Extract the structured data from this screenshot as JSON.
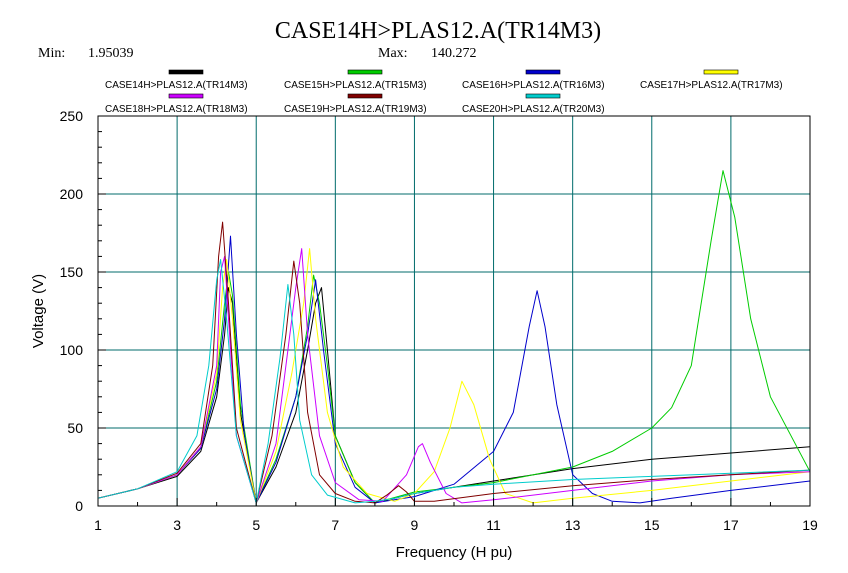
{
  "chart_data": {
    "type": "line",
    "title": "CASE14H>PLAS12.A(TR14M3)",
    "min_label": "Min:",
    "min_value": "1.95039",
    "max_label": "Max:",
    "max_value": "140.272",
    "xlabel": "Frequency (H pu)",
    "ylabel": "Voltage (V)",
    "xlim": [
      1,
      19
    ],
    "ylim": [
      0,
      250
    ],
    "x_ticks": [
      1,
      3,
      5,
      7,
      9,
      11,
      13,
      15,
      17,
      19
    ],
    "y_ticks": [
      0,
      50,
      100,
      150,
      200,
      250
    ],
    "grid": true,
    "legend_position": "top",
    "series": [
      {
        "name": "CASE14H>PLAS12.A(TR14M3)",
        "color": "#000000",
        "x": [
          1,
          2,
          3,
          3.6,
          4.0,
          4.2,
          4.3,
          4.4,
          4.6,
          5.0,
          5.5,
          6.0,
          6.3,
          6.5,
          6.65,
          6.8,
          7.0,
          7.5,
          8.0,
          9,
          11,
          13,
          15,
          17,
          19
        ],
        "y": [
          5,
          11,
          19,
          35,
          70,
          110,
          140,
          130,
          60,
          2,
          25,
          60,
          100,
          130,
          140,
          100,
          45,
          15,
          1.95,
          8,
          16,
          24,
          30,
          34,
          38
        ]
      },
      {
        "name": "CASE15H>PLAS12.A(TR15M3)",
        "color": "#00cc00",
        "x": [
          1,
          2,
          3,
          3.6,
          4.0,
          4.2,
          4.3,
          4.4,
          4.6,
          5.0,
          5.5,
          6.0,
          6.3,
          6.45,
          6.6,
          6.8,
          7.0,
          7.5,
          8.0,
          9,
          11,
          13,
          14,
          15,
          15.5,
          16,
          16.5,
          16.8,
          17.1,
          17.5,
          18,
          19
        ],
        "y": [
          5,
          11,
          20,
          37,
          80,
          130,
          150,
          135,
          65,
          2,
          30,
          70,
          115,
          148,
          130,
          90,
          45,
          15,
          2,
          9,
          15,
          25,
          35,
          50,
          63,
          90,
          170,
          215,
          185,
          120,
          70,
          22
        ]
      },
      {
        "name": "CASE16H>PLAS12.A(TR16M3)",
        "color": "#0000cc",
        "x": [
          1,
          2,
          3,
          3.6,
          4.0,
          4.2,
          4.35,
          4.5,
          4.7,
          5.0,
          5.5,
          6.0,
          6.3,
          6.5,
          6.7,
          7.0,
          7.5,
          8.0,
          9,
          10,
          11,
          11.5,
          11.9,
          12.1,
          12.3,
          12.6,
          13,
          13.5,
          14,
          14.7,
          15.5,
          17,
          19
        ],
        "y": [
          5,
          11,
          20,
          37,
          75,
          120,
          173,
          110,
          45,
          2,
          28,
          70,
          110,
          145,
          100,
          40,
          12,
          2,
          6,
          14,
          35,
          60,
          115,
          138,
          115,
          65,
          20,
          8,
          3,
          2,
          5,
          10,
          16
        ]
      },
      {
        "name": "CASE17H>PLAS12.A(TR17M3)",
        "color": "#ffff00",
        "x": [
          1,
          2,
          3,
          3.6,
          4.0,
          4.15,
          4.25,
          4.4,
          4.6,
          5.0,
          5.5,
          5.9,
          6.2,
          6.35,
          6.5,
          6.8,
          7.2,
          7.8,
          8.5,
          9.0,
          9.5,
          9.9,
          10.2,
          10.5,
          10.9,
          11.3,
          12,
          13,
          15,
          17,
          19
        ],
        "y": [
          5,
          11,
          20,
          38,
          85,
          140,
          158,
          120,
          55,
          2,
          35,
          85,
          130,
          165,
          120,
          60,
          25,
          8,
          3,
          8,
          22,
          50,
          80,
          65,
          30,
          8,
          2,
          5,
          10,
          16,
          22
        ]
      },
      {
        "name": "CASE18H>PLAS12.A(TR18M3)",
        "color": "#cc00ff",
        "x": [
          1,
          2,
          3,
          3.6,
          4.0,
          4.1,
          4.2,
          4.3,
          4.5,
          5.0,
          5.5,
          5.8,
          6.0,
          6.15,
          6.3,
          6.6,
          7.0,
          7.6,
          8.2,
          8.8,
          9.1,
          9.2,
          9.4,
          9.8,
          10.2,
          11,
          13,
          15,
          17,
          19
        ],
        "y": [
          5,
          11,
          20,
          38,
          90,
          150,
          160,
          120,
          45,
          2,
          40,
          100,
          140,
          165,
          110,
          45,
          15,
          4,
          3,
          20,
          38,
          40,
          28,
          8,
          2,
          4,
          10,
          16,
          20,
          22
        ]
      },
      {
        "name": "CASE19H>PLAS12.A(TR19M3)",
        "color": "#800000",
        "x": [
          1,
          2,
          3,
          3.6,
          3.9,
          4.05,
          4.15,
          4.3,
          4.5,
          5.0,
          5.4,
          5.75,
          5.95,
          6.1,
          6.3,
          6.6,
          7.0,
          7.5,
          8.0,
          8.3,
          8.6,
          8.8,
          9.0,
          9.5,
          11,
          13,
          15,
          17,
          19
        ],
        "y": [
          5,
          11,
          21,
          40,
          90,
          160,
          182,
          130,
          50,
          2,
          45,
          110,
          157,
          130,
          60,
          20,
          8,
          3,
          2,
          7,
          13,
          9,
          3,
          3,
          8,
          13,
          17,
          20,
          23
        ]
      },
      {
        "name": "CASE20H>PLAS12.A(TR20M3)",
        "color": "#00cccc",
        "x": [
          1,
          2,
          3,
          3.5,
          3.8,
          4.0,
          4.1,
          4.25,
          4.5,
          5.0,
          5.3,
          5.6,
          5.8,
          5.95,
          6.1,
          6.4,
          6.8,
          7.5,
          8.0,
          8.5,
          9.0,
          10,
          11,
          13,
          15,
          17,
          19
        ],
        "y": [
          5,
          11,
          22,
          45,
          90,
          145,
          158,
          120,
          45,
          2,
          40,
          95,
          142,
          110,
          55,
          20,
          7,
          2,
          3,
          5,
          8,
          12,
          14,
          17,
          19,
          21,
          23
        ]
      }
    ]
  }
}
